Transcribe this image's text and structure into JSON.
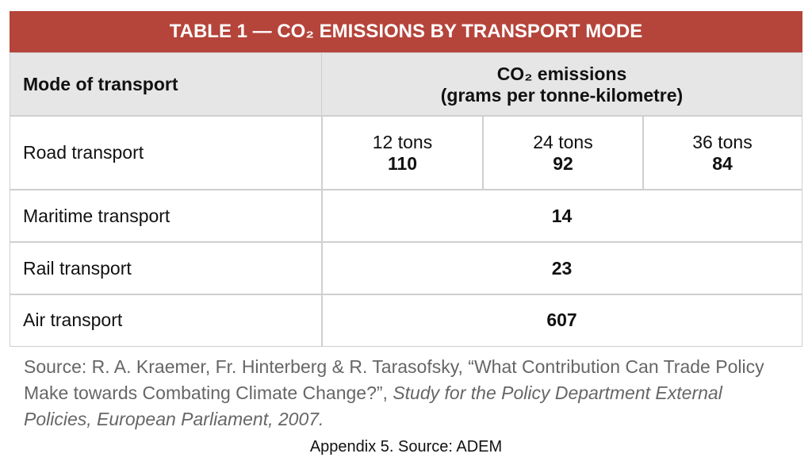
{
  "title": "TABLE 1 — CO₂ EMISSIONS BY TRANSPORT MODE",
  "header": {
    "mode": "Mode of transport",
    "emissions": "CO₂ emissions",
    "units": "(grams per tonne-kilometre)"
  },
  "rows": [
    {
      "mode": "Road transport",
      "loads": [
        {
          "load": "12 tons",
          "value": 110
        },
        {
          "load": "24 tons",
          "value": 92
        },
        {
          "load": "36 tons",
          "value": 84
        }
      ]
    },
    {
      "mode": "Maritime transport",
      "value": 14
    },
    {
      "mode": "Rail transport",
      "value": 23
    },
    {
      "mode": "Air transport",
      "value": 607
    }
  ],
  "source": {
    "text": "Source: R. A. Kraemer, Fr. Hinterberg & R. Tarasofsky, “What Contribution Can Trade Policy Make towards Combating Climate Change?”,",
    "italic": "Study for the Policy Department External Policies, European Parliament, 2007."
  },
  "caption": "Appendix 5. Source: ADEM"
}
